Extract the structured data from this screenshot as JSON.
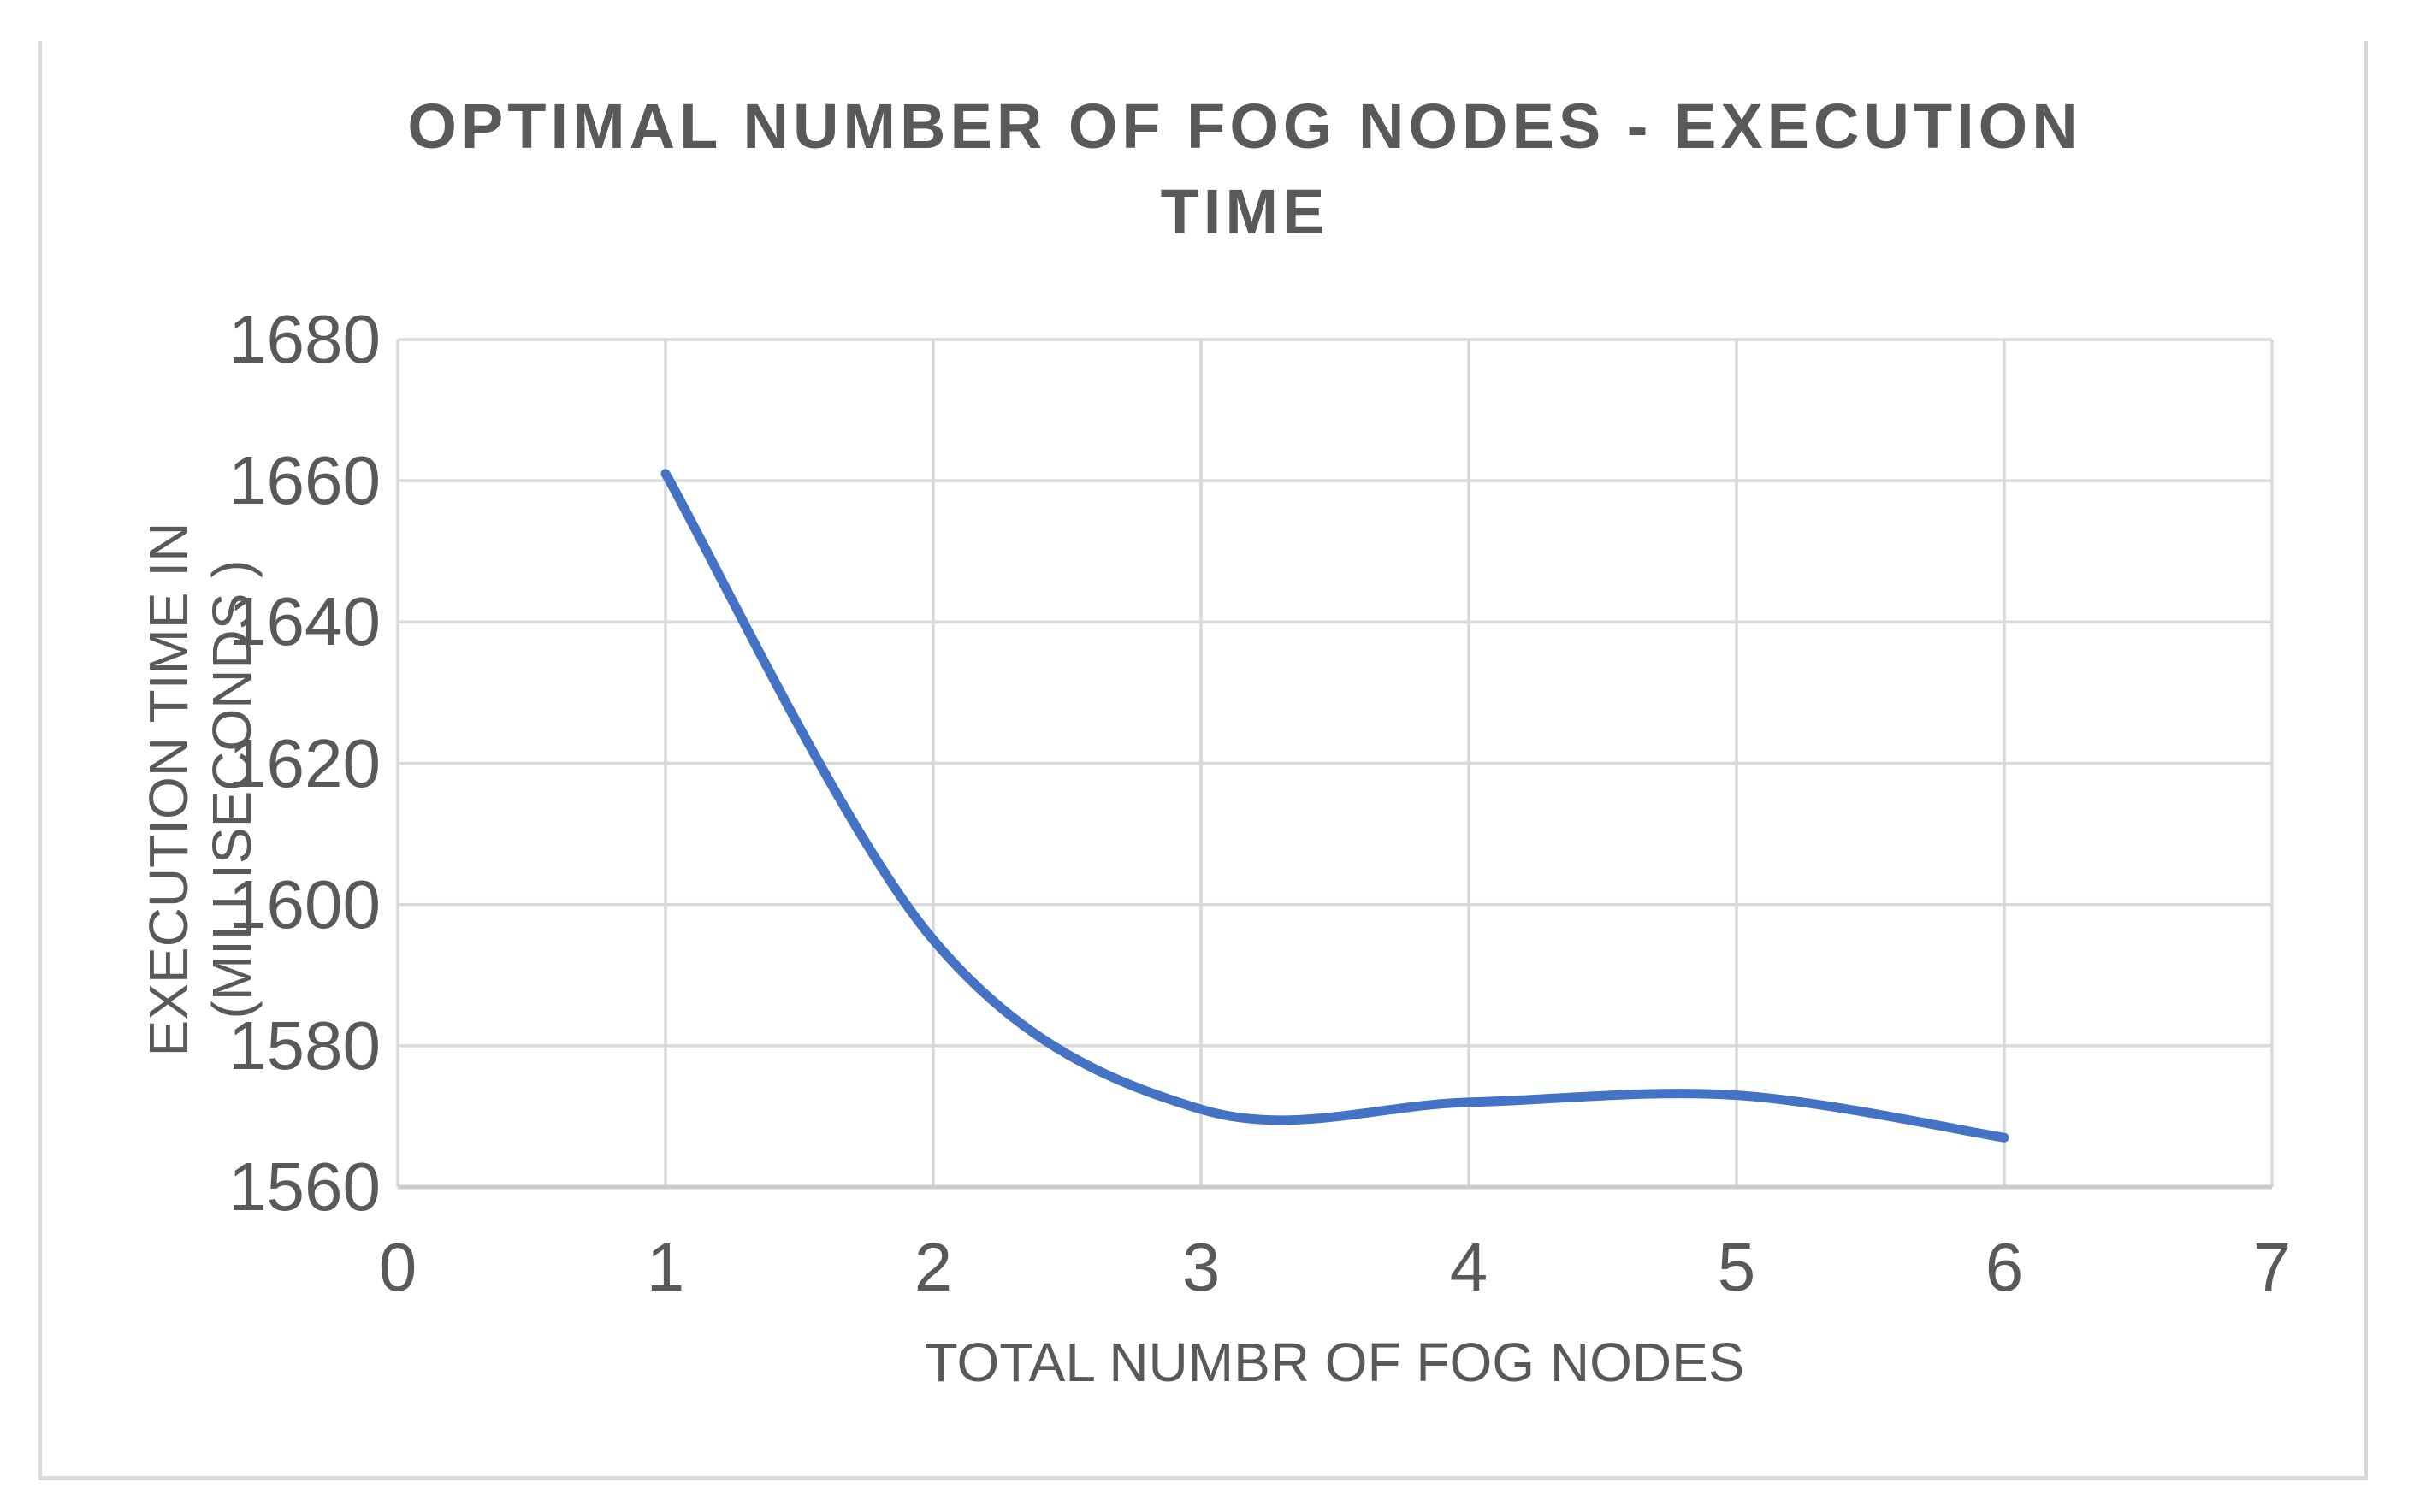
{
  "chart": {
    "title": "OPTIMAL NUMBER OF FOG NODES - EXECUTION TIME",
    "x_axis_title": "TOTAL NUMBR OF FOG NODES",
    "y_axis_title": "EXECUTION TIME IN (MILLISECONDS )"
  },
  "chart_data": {
    "type": "line",
    "title": "OPTIMAL NUMBER OF FOG NODES - EXECUTION TIME",
    "xlabel": "TOTAL NUMBR OF FOG NODES",
    "ylabel": "EXECUTION TIME IN (MILLISECONDS )",
    "x": [
      1,
      2,
      3,
      4,
      5,
      6
    ],
    "y": [
      1661,
      1595,
      1571,
      1572,
      1573,
      1567
    ],
    "xlim": [
      0,
      7
    ],
    "ylim": [
      1560,
      1680
    ],
    "xticks": [
      0,
      1,
      2,
      3,
      4,
      5,
      6,
      7
    ],
    "yticks": [
      1680,
      1660,
      1640,
      1620,
      1600,
      1580,
      1560
    ],
    "grid": true,
    "smooth": true,
    "legend": "none",
    "line_color": "#4472c4",
    "line_width": 11,
    "gridline_color": "#d9d9d9",
    "axis_line_color": "#cccccc",
    "text_color": "#595959",
    "frame_border_color": "#d9d9d9"
  }
}
